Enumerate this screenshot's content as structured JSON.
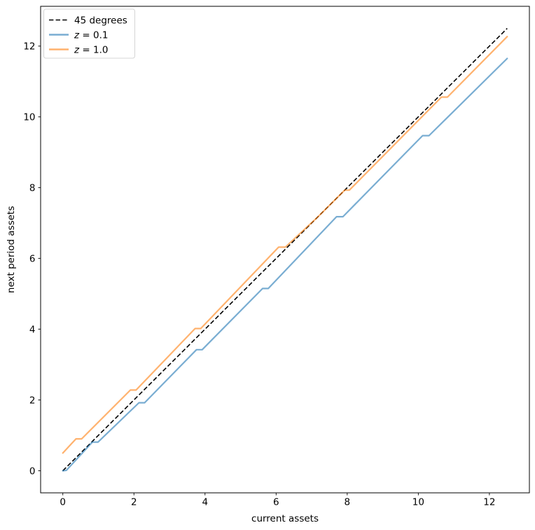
{
  "figure": {
    "background": "#ffffff",
    "spine_color": "#000000",
    "legend_border_color": "#d5d5d5",
    "legend_background": "#ffffff"
  },
  "chart_data": {
    "type": "line",
    "title": "",
    "xlabel": "current assets",
    "ylabel": "next period assets",
    "xlim": [
      -0.625,
      13.125
    ],
    "ylim": [
      -0.625,
      13.125
    ],
    "xticks": [
      0,
      2,
      4,
      6,
      8,
      10,
      12
    ],
    "yticks": [
      0,
      2,
      4,
      6,
      8,
      10,
      12
    ],
    "grid": false,
    "legend_position": "upper-left",
    "series": [
      {
        "name": "45 degrees",
        "color": "#000000",
        "alpha": 1.0,
        "style": "dashed",
        "line_width": 1.6,
        "points": [
          [
            0,
            0
          ],
          [
            12.5,
            12.5
          ]
        ]
      },
      {
        "name": "z = 0.1",
        "color": "#1f77b4",
        "alpha": 0.6,
        "style": "solid",
        "line_width": 2.2,
        "points": [
          [
            0,
            0
          ],
          [
            0.1,
            0.01
          ],
          [
            0.83,
            0.81
          ],
          [
            0.99,
            0.81
          ],
          [
            2.14,
            1.92
          ],
          [
            2.3,
            1.92
          ],
          [
            3.76,
            3.42
          ],
          [
            3.92,
            3.42
          ],
          [
            5.62,
            5.15
          ],
          [
            5.78,
            5.15
          ],
          [
            7.7,
            7.18
          ],
          [
            7.88,
            7.18
          ],
          [
            10.12,
            9.47
          ],
          [
            10.3,
            9.47
          ],
          [
            12.5,
            11.65
          ]
        ]
      },
      {
        "name": "z = 1.0",
        "color": "#ff7f0e",
        "alpha": 0.6,
        "style": "solid",
        "line_width": 2.2,
        "points": [
          [
            0,
            0.5
          ],
          [
            0.37,
            0.9
          ],
          [
            0.53,
            0.9
          ],
          [
            1.9,
            2.28
          ],
          [
            2.06,
            2.28
          ],
          [
            3.72,
            4.02
          ],
          [
            3.88,
            4.02
          ],
          [
            6.07,
            6.32
          ],
          [
            6.26,
            6.32
          ],
          [
            7.15,
            7.15
          ],
          [
            7.93,
            7.93
          ],
          [
            8.06,
            7.93
          ],
          [
            10.65,
            10.56
          ],
          [
            10.82,
            10.56
          ],
          [
            12.5,
            12.27
          ]
        ]
      }
    ],
    "legend_items": [
      {
        "series_index": 0,
        "parts": [
          {
            "text": "45 degrees",
            "italic": false
          }
        ]
      },
      {
        "series_index": 1,
        "parts": [
          {
            "text": "z",
            "italic": true
          },
          {
            "text": " = 0.1",
            "italic": false
          }
        ]
      },
      {
        "series_index": 2,
        "parts": [
          {
            "text": "z",
            "italic": true
          },
          {
            "text": " = 1.0",
            "italic": false
          }
        ]
      }
    ]
  }
}
